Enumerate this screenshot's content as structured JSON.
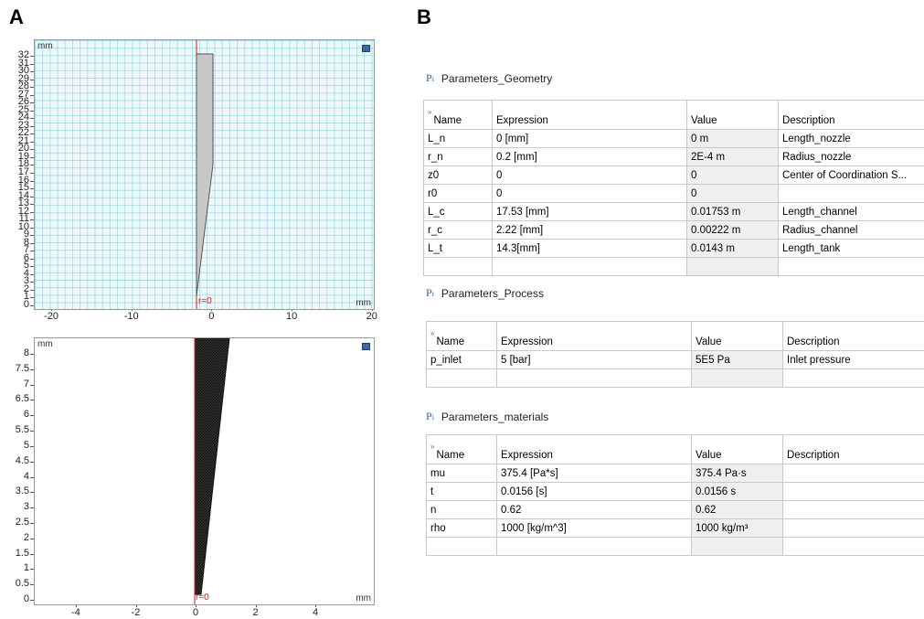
{
  "panels": {
    "a": "A",
    "b": "B"
  },
  "plot_top": {
    "unit_top": "mm",
    "unit_right": "mm",
    "r0": "r=0",
    "y_ticks": [
      "32",
      "31",
      "30",
      "29",
      "28",
      "27",
      "26",
      "25",
      "24",
      "23",
      "22",
      "21",
      "20",
      "19",
      "18",
      "17",
      "16",
      "15",
      "14",
      "13",
      "12",
      "11",
      "10",
      "9",
      "8",
      "7",
      "6",
      "5",
      "4",
      "3",
      "2",
      "1",
      "0"
    ],
    "x_ticks": [
      "-20",
      "-10",
      "0",
      "10",
      "20"
    ]
  },
  "plot_bottom": {
    "unit_top": "mm",
    "unit_right": "mm",
    "r0": "r=0",
    "y_ticks": [
      "8",
      "7.5",
      "7",
      "6.5",
      "6",
      "5.5",
      "5",
      "4.5",
      "4",
      "3.5",
      "3",
      "2.5",
      "2",
      "1.5",
      "1",
      "0.5",
      "0"
    ],
    "x_ticks": [
      "-4",
      "-2",
      "0",
      "2",
      "4"
    ]
  },
  "tables": [
    {
      "title": "Parameters_Geometry",
      "icon": "parameters-icon",
      "headers": [
        "Name",
        "Expression",
        "Value",
        "Description"
      ],
      "rows": [
        [
          "L_n",
          "0 [mm]",
          "0 m",
          "Length_nozzle"
        ],
        [
          "r_n",
          "0.2 [mm]",
          "2E-4 m",
          "Radius_nozzle"
        ],
        [
          "z0",
          "0",
          "0",
          "Center of Coordination S..."
        ],
        [
          "r0",
          "0",
          "0",
          ""
        ],
        [
          "L_c",
          "17.53 [mm]",
          "0.01753 m",
          "Length_channel"
        ],
        [
          "r_c",
          "2.22 [mm]",
          "0.00222 m",
          "Radius_channel"
        ],
        [
          "L_t",
          "14.3[mm]",
          "0.0143 m",
          "Length_tank"
        ],
        [
          "",
          "",
          "",
          ""
        ]
      ]
    },
    {
      "title": "Parameters_Process",
      "icon": "parameters-icon",
      "headers": [
        "Name",
        "Expression",
        "Value",
        "Description"
      ],
      "rows": [
        [
          "p_inlet",
          "5 [bar]",
          "5E5 Pa",
          "Inlet pressure"
        ],
        [
          "",
          "",
          "",
          ""
        ]
      ]
    },
    {
      "title": "Parameters_materials",
      "icon": "parameters-icon",
      "headers": [
        "Name",
        "Expression",
        "Value",
        "Description"
      ],
      "rows": [
        [
          "mu",
          "375.4 [Pa*s]",
          "375.4 Pa·s",
          ""
        ],
        [
          "t",
          "0.0156 [s]",
          "0.0156 s",
          ""
        ],
        [
          "n",
          "0.62",
          "0.62",
          ""
        ],
        [
          "rho",
          "1000 [kg/m^3]",
          "1000 kg/m³",
          ""
        ],
        [
          "",
          "",
          "",
          ""
        ]
      ]
    }
  ],
  "colors": {
    "grid": "#78c8d7",
    "plot_bg": "#eef8fb",
    "geometry_fill": "#c8c8c8",
    "axis_red": "#d01a1a",
    "icon_blue": "#2f65b5"
  }
}
